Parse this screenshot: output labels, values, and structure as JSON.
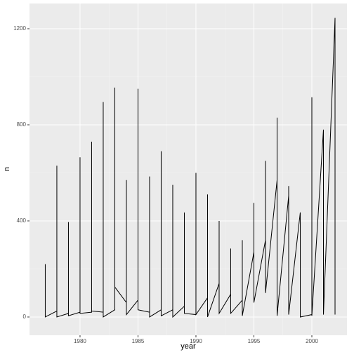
{
  "chart_data": {
    "type": "line",
    "x_label": "year",
    "y_label": "n",
    "x": [
      1977,
      1977,
      1978,
      1978,
      1978,
      1979,
      1979,
      1979,
      1980,
      1980,
      1980,
      1981,
      1981,
      1981,
      1982,
      1982,
      1982,
      1983,
      1983,
      1983,
      1984,
      1984,
      1984,
      1985,
      1985,
      1985,
      1986,
      1986,
      1986,
      1987,
      1987,
      1987,
      1988,
      1988,
      1988,
      1989,
      1989,
      1989,
      1990,
      1990,
      1990,
      1991,
      1991,
      1991,
      1992,
      1992,
      1992,
      1993,
      1993,
      1993,
      1994,
      1994,
      1994,
      1995,
      1995,
      1995,
      1996,
      1996,
      1996,
      1997,
      1997,
      1997,
      1998,
      1998,
      1998,
      1999,
      1999,
      2000,
      2000,
      2000,
      2001,
      2001,
      2002,
      2002
    ],
    "series": [
      {
        "color": "#000000",
        "values": [
          220,
          0,
          25,
          630,
          0,
          15,
          395,
          5,
          20,
          665,
          15,
          20,
          730,
          25,
          20,
          895,
          0,
          30,
          955,
          125,
          60,
          570,
          10,
          70,
          950,
          30,
          20,
          585,
          0,
          30,
          690,
          5,
          30,
          550,
          0,
          45,
          435,
          15,
          10,
          600,
          10,
          80,
          510,
          0,
          140,
          400,
          15,
          95,
          285,
          15,
          70,
          320,
          5,
          270,
          475,
          60,
          320,
          650,
          100,
          570,
          830,
          5,
          505,
          545,
          10,
          435,
          0,
          10,
          915,
          5,
          780,
          10,
          1245,
          10
        ]
      }
    ],
    "xlim": [
      1975.64,
      2003.03
    ],
    "ylim": [
      -76,
      1305
    ],
    "xticks": [
      1980,
      1985,
      1990,
      1995,
      2000
    ],
    "yticks": [
      0,
      400,
      800,
      1200
    ],
    "grid": true
  }
}
